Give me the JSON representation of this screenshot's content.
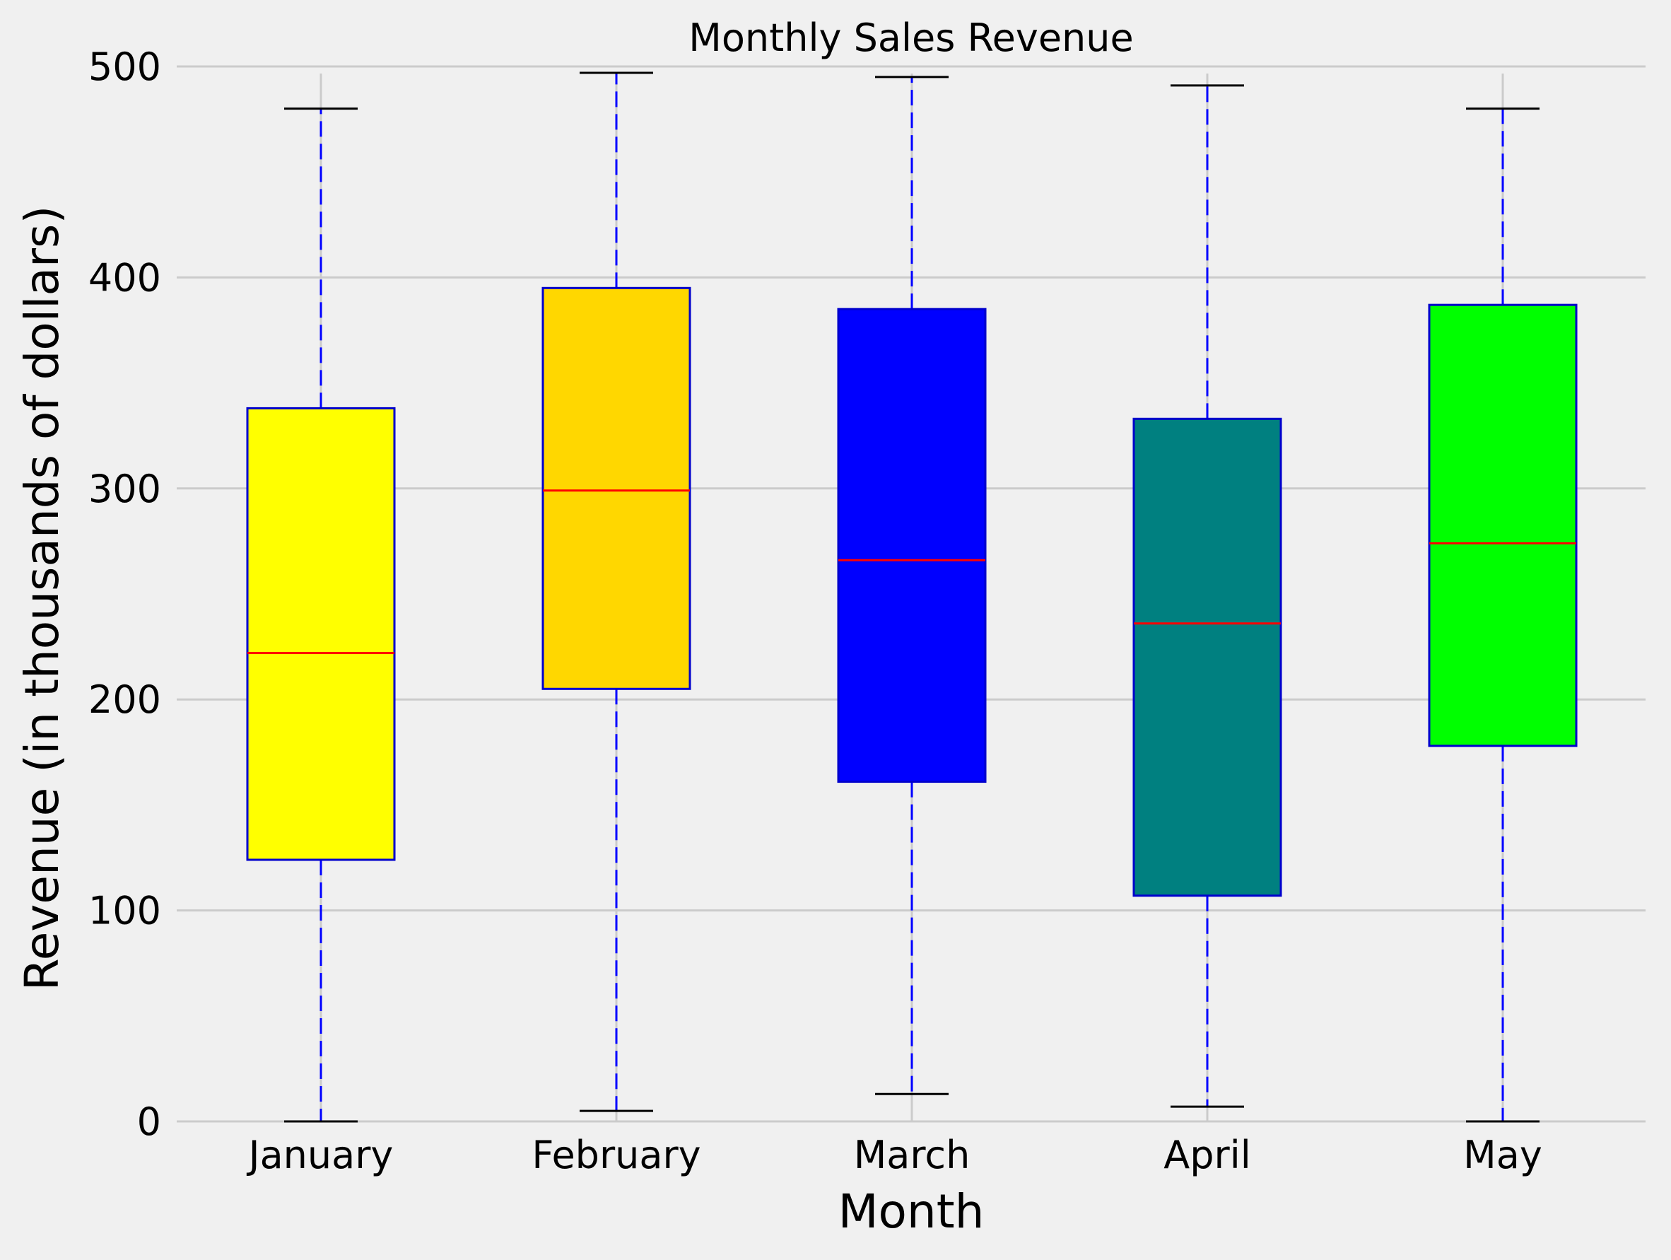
{
  "chart_data": {
    "type": "boxplot",
    "title": "Monthly Sales Revenue",
    "xlabel": "Month",
    "ylabel": "Revenue (in thousands of dollars)",
    "ylim": [
      0,
      500
    ],
    "y_ticks": [
      0,
      100,
      200,
      300,
      400,
      500
    ],
    "y_tick_labels": [
      "0",
      "100",
      "200",
      "300",
      "400",
      "500"
    ],
    "grid": "y-major",
    "categories": [
      "January",
      "February",
      "March",
      "April",
      "May"
    ],
    "boxes": [
      {
        "category": "January",
        "whisker_low": 0,
        "q1": 124,
        "median": 222,
        "q3": 338,
        "whisker_high": 480,
        "fill": "#ffff00"
      },
      {
        "category": "February",
        "whisker_low": 5,
        "q1": 205,
        "median": 299,
        "q3": 395,
        "whisker_high": 497,
        "fill": "#ffd700"
      },
      {
        "category": "March",
        "whisker_low": 13,
        "q1": 161,
        "median": 266,
        "q3": 385,
        "whisker_high": 495,
        "fill": "#0000ff"
      },
      {
        "category": "April",
        "whisker_low": 7,
        "q1": 107,
        "median": 236,
        "q3": 333,
        "whisker_high": 491,
        "fill": "#008080"
      },
      {
        "category": "May",
        "whisker_low": 0,
        "q1": 178,
        "median": 274,
        "q3": 387,
        "whisker_high": 480,
        "fill": "#00ff00"
      }
    ],
    "colors": {
      "background": "#f0f0f0",
      "grid": "#cbcbcb",
      "box_edge": "#0000cc",
      "median": "#ff0000",
      "whisker": "#0000ff",
      "cap": "#000000"
    }
  }
}
